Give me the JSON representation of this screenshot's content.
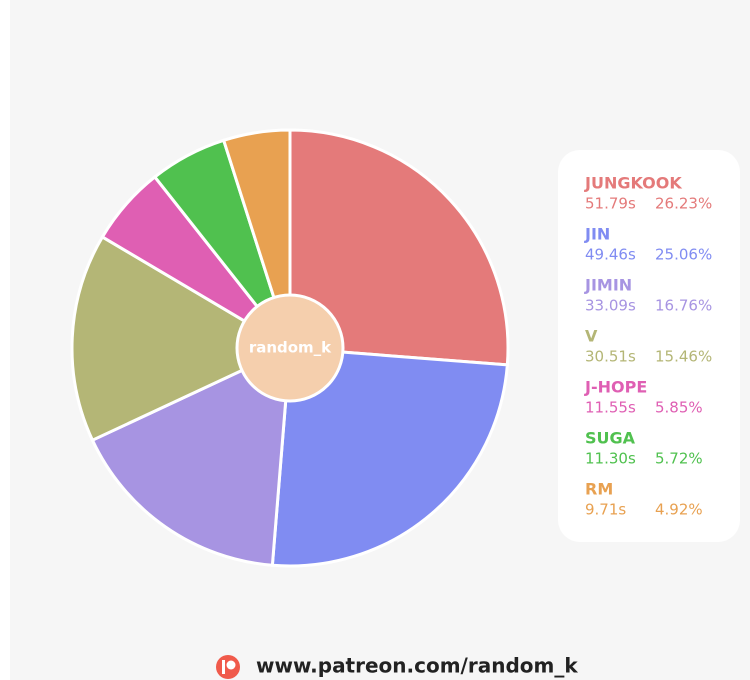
{
  "chart_data": {
    "type": "pie",
    "categories": [
      "JUNGKOOK",
      "JIN",
      "JIMIN",
      "V",
      "J-HOPE",
      "SUGA",
      "RM"
    ],
    "values": [
      51.79,
      49.46,
      33.09,
      30.51,
      11.55,
      11.3,
      9.71
    ],
    "value_labels": [
      "51.79s",
      "49.46s",
      "33.09s",
      "30.51s",
      "11.55s",
      "11.30s",
      "9.71s"
    ],
    "percents": [
      26.23,
      25.06,
      16.76,
      15.46,
      5.85,
      5.72,
      4.92
    ],
    "percent_labels": [
      "26.23%",
      "25.06%",
      "16.76%",
      "15.46%",
      "5.85%",
      "5.72%",
      "4.92%"
    ],
    "colors": [
      "#e47a7a",
      "#808cf2",
      "#a794e2",
      "#b4b676",
      "#df5fb3",
      "#50c14f",
      "#e8a151"
    ],
    "center_label": "random_k",
    "footer": "www.patreon.com/random_k"
  }
}
